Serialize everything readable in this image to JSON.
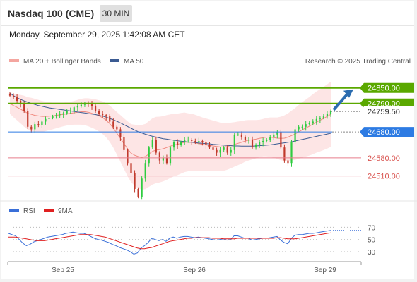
{
  "header": {
    "title": "Nasdaq 100 (CME)",
    "timeframe": "30 MIN",
    "datetime": "Monday, September 29, 2025 1:42:08 AM CET"
  },
  "legend": {
    "ma20_label": "MA 20 + Bollinger Bands",
    "ma50_label": "MA 50",
    "credit": "Research © 2025 Trading Central",
    "rsi_label": "RSI",
    "rsi_ma_label": "9MA"
  },
  "colors": {
    "up": "#2ecc40",
    "down": "#c0392b",
    "resistance": "#5aa800",
    "pivot": "#2d7be3",
    "support": "#e67e8c",
    "ma20": "#e74c3c",
    "ma50": "#3b5b92",
    "band": "#fde0e0",
    "rsi": "#3a6fd8",
    "rsi_ma": "#e02020",
    "arrow": "#2b6cb0"
  },
  "chart_data": [
    {
      "type": "candlestick",
      "title": "Nasdaq 100 (CME)",
      "x_ticks": [
        "Sep 25",
        "Sep 26",
        "Sep 29"
      ],
      "ylim": [
        24400,
        24890
      ],
      "levels": [
        {
          "label": "24850.00",
          "value": 24850,
          "kind": "resistance"
        },
        {
          "label": "24790.00",
          "value": 24790,
          "kind": "resistance"
        },
        {
          "label": "24759.50",
          "value": 24759.5,
          "kind": "last"
        },
        {
          "label": "24680.00",
          "value": 24680,
          "kind": "pivot"
        },
        {
          "label": "24580.00",
          "value": 24580,
          "kind": "support"
        },
        {
          "label": "24510.00",
          "value": 24510,
          "kind": "support"
        }
      ],
      "closes": [
        24820,
        24815,
        24800,
        24790,
        24760,
        24700,
        24690,
        24710,
        24705,
        24720,
        24730,
        24735,
        24740,
        24745,
        24748,
        24752,
        24760,
        24762,
        24775,
        24780,
        24785,
        24790,
        24788,
        24780,
        24760,
        24750,
        24745,
        24740,
        24720,
        24700,
        24690,
        24660,
        24610,
        24560,
        24520,
        24460,
        24430,
        24500,
        24560,
        24620,
        24650,
        24600,
        24570,
        24580,
        24560,
        24620,
        24640,
        24630,
        24640,
        24650,
        24650,
        24645,
        24640,
        24645,
        24640,
        24630,
        24620,
        24610,
        24600,
        24610,
        24620,
        24600,
        24610,
        24670,
        24670,
        24660,
        24650,
        24650,
        24620,
        24630,
        24640,
        24645,
        24650,
        24660,
        24670,
        24680,
        24620,
        24570,
        24560,
        24640,
        24690,
        24700,
        24700,
        24710,
        24715,
        24720,
        24730,
        24735,
        24740,
        24750,
        24760
      ],
      "ma20": [
        24790,
        24782,
        24775,
        24768,
        24760,
        24752,
        24748,
        24744,
        24742,
        24740,
        24740,
        24741,
        24742,
        24744,
        24746,
        24748,
        24750,
        24752,
        24754,
        24756,
        24758,
        24758,
        24756,
        24752,
        24748,
        24742,
        24735,
        24725,
        24712,
        24695,
        24675,
        24655,
        24635,
        24615,
        24598,
        24590,
        24585,
        24582,
        24585,
        24595,
        24605,
        24610,
        24612,
        24615,
        24620,
        24625,
        24630,
        24632,
        24636,
        24640,
        24640,
        24640,
        24638,
        24635,
        24632,
        24630,
        24628,
        24626,
        24624,
        24622,
        24622,
        24624,
        24628,
        24632,
        24636,
        24640,
        24645,
        24648,
        24650,
        24652,
        24655,
        24658,
        24660,
        24660,
        24658,
        24656,
        24655,
        24656,
        24660,
        24666,
        24672,
        24680,
        24688,
        24695,
        24702,
        24710,
        24718,
        24725,
        24732,
        24740,
        24748
      ],
      "ma50": [
        24830,
        24820,
        24812,
        24806,
        24800,
        24795,
        24790,
        24786,
        24782,
        24779,
        24776,
        24773,
        24771,
        24769,
        24767,
        24765,
        24763,
        24761,
        24759,
        24757,
        24755,
        24753,
        24751,
        24749,
        24747,
        24744,
        24741,
        24737,
        24732,
        24727,
        24721,
        24715,
        24708,
        24701,
        24694,
        24687,
        24681,
        24676,
        24671,
        24667,
        24663,
        24660,
        24657,
        24654,
        24652,
        24650,
        24648,
        24646,
        24644,
        24643,
        24641,
        24640,
        24639,
        24637,
        24636,
        24635,
        24634,
        24632,
        24631,
        24630,
        24629,
        24628,
        24627,
        24626,
        24626,
        24625,
        24625,
        24625,
        24625,
        24626,
        24627,
        24628,
        24629,
        24630,
        24632,
        24634,
        24636,
        24638,
        24640,
        24642,
        24645,
        24648,
        24651,
        24654,
        24657,
        24660,
        24663,
        24666,
        24669,
        24672,
        24675
      ],
      "band_width": [
        40,
        45,
        50,
        55,
        60,
        62,
        64,
        64,
        62,
        60,
        57,
        54,
        52,
        50,
        48,
        46,
        45,
        45,
        46,
        48,
        50,
        52,
        54,
        56,
        58,
        60,
        63,
        66,
        70,
        75,
        82,
        90,
        98,
        106,
        112,
        118,
        122,
        125,
        126,
        127,
        128,
        128,
        127,
        126,
        125,
        123,
        121,
        119,
        117,
        115,
        112,
        110,
        108,
        106,
        104,
        102,
        100,
        98,
        96,
        94,
        92,
        90,
        88,
        86,
        84,
        82,
        80,
        78,
        76,
        74,
        72,
        72,
        74,
        76,
        78,
        80,
        84,
        88,
        92,
        96,
        100,
        104,
        107,
        110,
        113,
        116,
        118,
        120,
        122,
        124,
        126
      ]
    },
    {
      "type": "line",
      "ylim": [
        15,
        82
      ],
      "y_ticks": [
        "70",
        "50",
        "30"
      ],
      "series": [
        {
          "name": "RSI",
          "values": [
            60,
            58,
            56,
            50,
            44,
            40,
            42,
            46,
            48,
            50,
            52,
            54,
            55,
            56,
            57,
            58,
            60,
            61,
            62,
            61,
            60,
            60,
            58,
            55,
            52,
            50,
            49,
            47,
            45,
            42,
            40,
            37,
            35,
            33,
            30,
            26,
            28,
            36,
            40,
            45,
            52,
            50,
            48,
            50,
            47,
            52,
            54,
            52,
            54,
            55,
            55,
            54,
            53,
            54,
            53,
            52,
            51,
            50,
            49,
            50,
            51,
            49,
            50,
            56,
            56,
            54,
            52,
            52,
            49,
            50,
            51,
            52,
            52,
            53,
            54,
            55,
            49,
            45,
            43,
            52,
            57,
            58,
            58,
            59,
            60,
            60,
            61,
            62,
            63,
            64,
            65
          ]
        },
        {
          "name": "9MA",
          "values": [
            54,
            54,
            54,
            53,
            52,
            51,
            50,
            49,
            48,
            48,
            48,
            49,
            50,
            51,
            52,
            53,
            54,
            55,
            56,
            57,
            58,
            58,
            58,
            58,
            57,
            56,
            55,
            54,
            52,
            50,
            48,
            46,
            44,
            42,
            40,
            38,
            36,
            35,
            35,
            36,
            37,
            39,
            41,
            43,
            45,
            47,
            48,
            49,
            50,
            51,
            52,
            52,
            53,
            53,
            53,
            53,
            53,
            52,
            52,
            52,
            51,
            51,
            51,
            51,
            52,
            52,
            52,
            52,
            52,
            52,
            52,
            52,
            52,
            52,
            52,
            53,
            53,
            52,
            51,
            51,
            51,
            52,
            53,
            54,
            55,
            56,
            57,
            58,
            59,
            60,
            61
          ]
        }
      ]
    }
  ]
}
